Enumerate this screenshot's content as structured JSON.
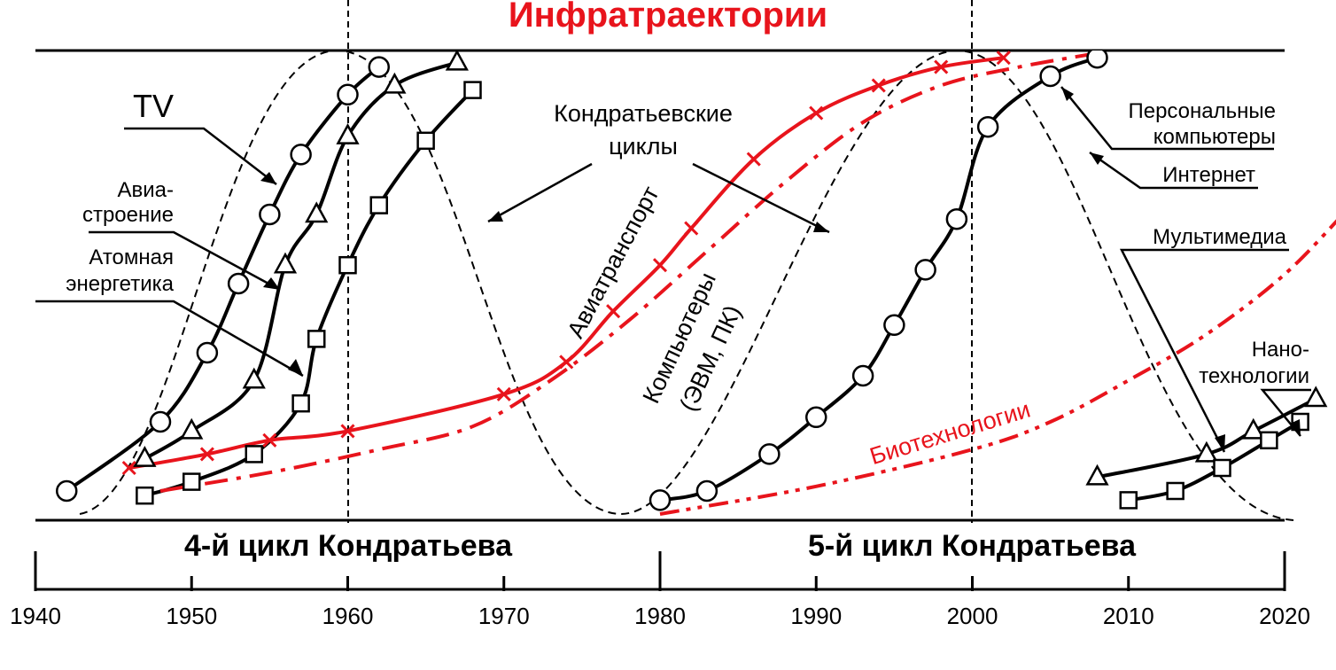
{
  "chart_data": {
    "type": "line",
    "title": "Инфратраектории",
    "x_range": [
      1940,
      2020
    ],
    "xticks": [
      "1940",
      "1950",
      "1960",
      "1970",
      "1980",
      "1990",
      "2000",
      "2010",
      "2020"
    ],
    "cycles": [
      {
        "label": "4-й цикл Кондратьева",
        "x_start": 1940,
        "x_end": 1980
      },
      {
        "label": "5-й цикл Кондратьева",
        "x_start": 1980,
        "x_end": 2020
      }
    ],
    "kondratiev_label": "Кондратьевские циклы",
    "series": [
      {
        "name": "TV",
        "color": "#000000",
        "dash": "solid",
        "marker": "circle",
        "x": [
          1942,
          1948,
          1951,
          1953,
          1955,
          1957,
          1960,
          1962
        ],
        "y": [
          0.05,
          0.2,
          0.35,
          0.5,
          0.65,
          0.78,
          0.91,
          0.97
        ]
      },
      {
        "name": "Авиастроение",
        "color": "#000000",
        "dash": "solid",
        "marker": "triangle",
        "x": [
          1947,
          1950,
          1954,
          1956,
          1958,
          1960,
          1963,
          1967
        ],
        "y": [
          0.12,
          0.18,
          0.29,
          0.54,
          0.65,
          0.82,
          0.93,
          0.98
        ]
      },
      {
        "name": "Атомная энергетика",
        "color": "#000000",
        "dash": "solid",
        "marker": "square",
        "x": [
          1947,
          1950,
          1954,
          1957,
          1958,
          1960,
          1962,
          1965,
          1968
        ],
        "y": [
          0.04,
          0.07,
          0.13,
          0.24,
          0.38,
          0.54,
          0.67,
          0.81,
          0.92
        ]
      },
      {
        "name": "Авиатранспорт",
        "color": "#e8141c",
        "dash": "solid",
        "marker": "x",
        "x": [
          1946,
          1951,
          1955,
          1960,
          1970,
          1974,
          1977,
          1980,
          1982,
          1986,
          1990,
          1994,
          1998,
          2002
        ],
        "y": [
          0.1,
          0.13,
          0.16,
          0.18,
          0.26,
          0.33,
          0.44,
          0.54,
          0.62,
          0.77,
          0.87,
          0.93,
          0.97,
          0.99
        ]
      },
      {
        "name": "Компьютеры (ЭВМ, ПК)",
        "color": "#e8141c",
        "dash": "dash-dot",
        "marker": "none",
        "x": [
          1948,
          1955,
          1962,
          1968,
          1973,
          1978,
          1983,
          1988,
          1993,
          1998,
          2003,
          2008
        ],
        "y": [
          0.05,
          0.09,
          0.14,
          0.19,
          0.29,
          0.42,
          0.57,
          0.72,
          0.85,
          0.93,
          0.97,
          1.0
        ]
      },
      {
        "name": "Персональные компьютеры",
        "color": "#000000",
        "dash": "solid",
        "marker": "circle",
        "x": [
          1980,
          1983,
          1987,
          1990,
          1993,
          1995,
          1997,
          1999,
          2001,
          2005,
          2008
        ],
        "y": [
          0.03,
          0.05,
          0.13,
          0.21,
          0.3,
          0.41,
          0.53,
          0.64,
          0.84,
          0.95,
          0.99
        ]
      },
      {
        "name": "Биотехнологии",
        "color": "#e8141c",
        "dash": "dash-dot-dot",
        "marker": "none",
        "x": [
          1980,
          1990,
          2000,
          2005,
          2010,
          2015,
          2020,
          2024
        ],
        "y": [
          0.0,
          0.06,
          0.14,
          0.2,
          0.29,
          0.39,
          0.52,
          0.66
        ]
      },
      {
        "name": "Мультимедиа",
        "color": "#000000",
        "dash": "solid",
        "marker": "triangle",
        "x": [
          2008,
          2015,
          2018,
          2022
        ],
        "y": [
          0.08,
          0.13,
          0.18,
          0.25
        ]
      },
      {
        "name": "Нанотехнологии",
        "color": "#000000",
        "dash": "solid",
        "marker": "square",
        "x": [
          2010,
          2013,
          2016,
          2019,
          2021
        ],
        "y": [
          0.03,
          0.05,
          0.1,
          0.16,
          0.2
        ]
      }
    ],
    "annotations": [
      {
        "text": "TV"
      },
      {
        "text": "Авиа-"
      },
      {
        "text": "строение"
      },
      {
        "text": "Атомная"
      },
      {
        "text": "энергетика"
      },
      {
        "text": "Кондратьевские"
      },
      {
        "text": "циклы"
      },
      {
        "text": "Авиатранспорт"
      },
      {
        "text": "Компьютеры"
      },
      {
        "text": "(ЭВМ, ПК)"
      },
      {
        "text": "Персональные"
      },
      {
        "text": "компьютеры"
      },
      {
        "text": "Интернет"
      },
      {
        "text": "Мультимедиа"
      },
      {
        "text": "Нано-"
      },
      {
        "text": "технологии"
      },
      {
        "text": "Биотехнологии"
      }
    ],
    "colors": {
      "accent": "#e8141c",
      "ink": "#000000"
    }
  }
}
